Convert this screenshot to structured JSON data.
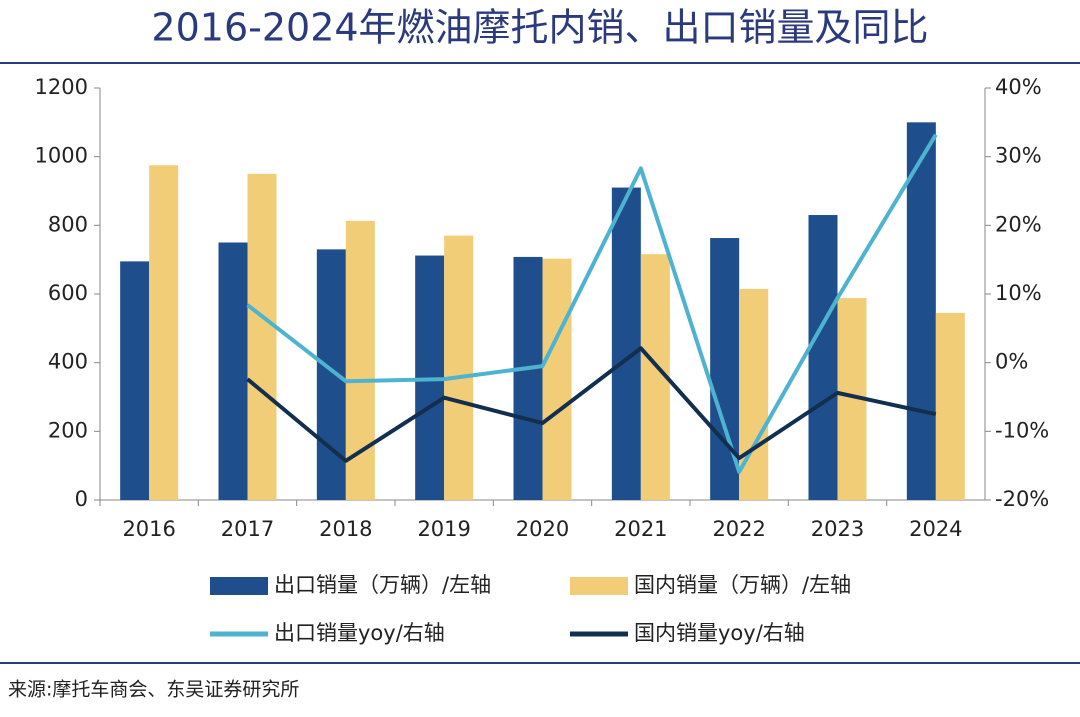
{
  "chart_data": {
    "type": "bar",
    "title": "2016-2024年燃油摩托内销、出口销量及同比",
    "source": "来源:摩托车商会、东吴证券研究所",
    "categories": [
      "2016",
      "2017",
      "2018",
      "2019",
      "2020",
      "2021",
      "2022",
      "2023",
      "2024"
    ],
    "series": [
      {
        "name": "出口销量（万辆）/左轴",
        "type": "bar",
        "color": "#1f4e8c",
        "values": [
          695,
          750,
          730,
          712,
          708,
          910,
          763,
          830,
          1100
        ]
      },
      {
        "name": "国内销量（万辆）/左轴",
        "type": "bar",
        "color": "#f2cd78",
        "values": [
          975,
          950,
          813,
          770,
          703,
          716,
          615,
          588,
          545
        ]
      },
      {
        "name": "出口销量yoy/右轴",
        "type": "line",
        "axis": "y2",
        "color": "#4db3d0",
        "values": [
          null,
          8.4,
          -2.7,
          -2.4,
          -0.5,
          28.3,
          -15.9,
          9.4,
          33.2
        ]
      },
      {
        "name": "国内销量yoy/右轴",
        "type": "line",
        "axis": "y2",
        "color": "#132f50",
        "values": [
          null,
          -2.4,
          -14.3,
          -5.1,
          -8.8,
          2.1,
          -13.9,
          -4.4,
          -7.5
        ]
      }
    ],
    "ylim": [
      0,
      1200
    ],
    "yticks": [
      0,
      200,
      400,
      600,
      800,
      1000,
      1200
    ],
    "y2lim": [
      -20,
      40
    ],
    "y2ticks": [
      {
        "value": -20,
        "label": "-20%"
      },
      {
        "value": -10,
        "label": "-10%"
      },
      {
        "value": 0,
        "label": "0%"
      },
      {
        "value": 10,
        "label": "10%"
      },
      {
        "value": 20,
        "label": "20%"
      },
      {
        "value": 30,
        "label": "30%"
      },
      {
        "value": 40,
        "label": "40%"
      }
    ]
  }
}
